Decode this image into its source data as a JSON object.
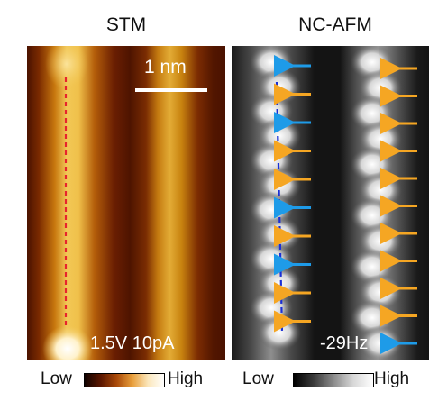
{
  "stm_panel": {
    "title": "STM",
    "scale_bar_label": "1 nm",
    "params": "1.5V 10pA",
    "colorbar_low": "Low",
    "colorbar_high": "High"
  },
  "afm_panel": {
    "title": "NC-AFM",
    "param": "-29Hz",
    "colorbar_low": "Low",
    "colorbar_high": "High"
  },
  "colors": {
    "trace_stm": "#e8242c",
    "trace_afm": "#1a2fd6",
    "arrow_orange": "#f5a623",
    "arrow_blue": "#1e9be8"
  },
  "arrows": {
    "column1": [
      "blue",
      "orange",
      "blue",
      "orange",
      "orange",
      "blue",
      "orange",
      "blue",
      "orange",
      "orange"
    ],
    "column2": [
      "orange",
      "orange",
      "orange",
      "orange",
      "orange",
      "orange",
      "orange",
      "orange",
      "orange",
      "orange",
      "blue"
    ]
  }
}
